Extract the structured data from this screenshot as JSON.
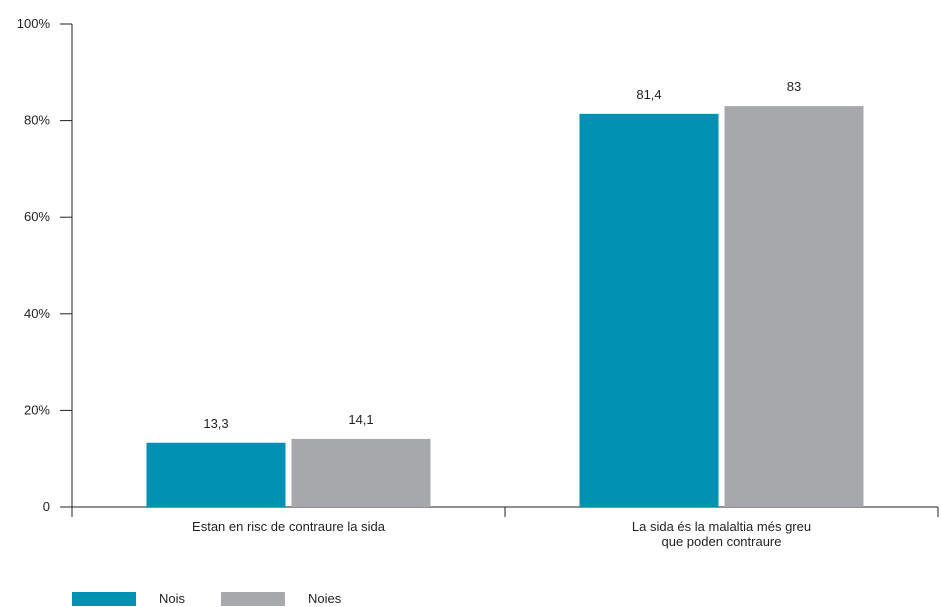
{
  "chart_data": {
    "type": "bar",
    "categories": [
      [
        "Estan en risc de contraure la sida"
      ],
      [
        "La sida és la malaltia més greu",
        "que poden contraure"
      ]
    ],
    "series": [
      {
        "name": "Nois",
        "color": "#0091b3",
        "values": [
          13.3,
          81.4
        ],
        "labels": [
          "13,3",
          "81,4"
        ]
      },
      {
        "name": "Noies",
        "color": "#a7a8ab",
        "values": [
          14.1,
          83
        ],
        "labels": [
          "14,1",
          "83"
        ]
      }
    ],
    "ylim": [
      0,
      100
    ],
    "yticks": [
      {
        "value": 0,
        "label": "0"
      },
      {
        "value": 20,
        "label": "20%"
      },
      {
        "value": 40,
        "label": "40%"
      },
      {
        "value": 60,
        "label": "60%"
      },
      {
        "value": 80,
        "label": "80%"
      },
      {
        "value": 100,
        "label": "100%"
      }
    ],
    "title": "",
    "xlabel": "",
    "ylabel": "",
    "legend_position": "bottom-left",
    "grid": false
  }
}
